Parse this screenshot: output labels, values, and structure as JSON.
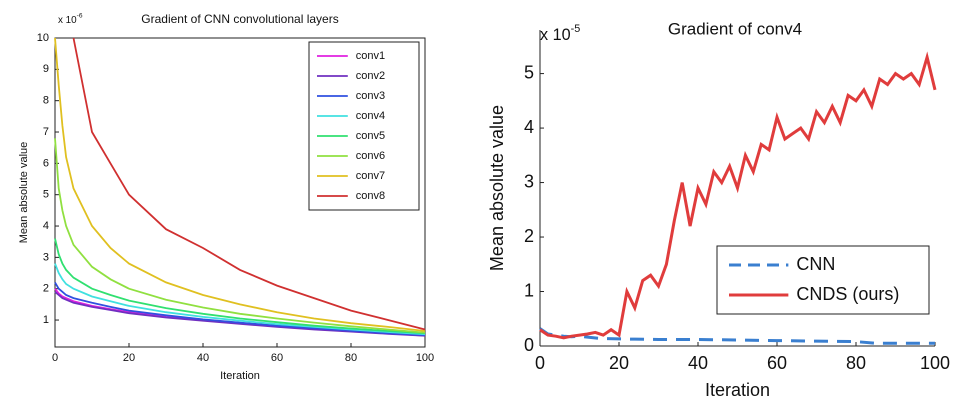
{
  "chart_data": [
    {
      "type": "line",
      "title": "Gradient of CNN convolutional layers",
      "x_label": "Iteration",
      "y_label": "Mean absolute value",
      "y_offset_label": "x 10",
      "y_offset_exponent": "-6",
      "x": [
        0,
        1,
        2,
        3,
        5,
        10,
        15,
        20,
        30,
        40,
        50,
        60,
        70,
        80,
        90,
        100
      ],
      "xlim": [
        0,
        100
      ],
      "xticks": [
        0,
        20,
        40,
        60,
        80,
        100
      ],
      "ylim": [
        0.14,
        10
      ],
      "yticks": [
        1,
        2,
        3,
        4,
        5,
        6,
        7,
        8,
        9,
        10
      ],
      "legend": "upper right",
      "series": [
        {
          "name": "conv1",
          "color": "#e020e0",
          "values": [
            2.0,
            1.85,
            1.75,
            1.7,
            1.6,
            1.45,
            1.35,
            1.25,
            1.1,
            1.0,
            0.9,
            0.8,
            0.72,
            0.65,
            0.58,
            0.5
          ]
        },
        {
          "name": "conv2",
          "color": "#7030c0",
          "values": [
            1.9,
            1.8,
            1.7,
            1.65,
            1.55,
            1.42,
            1.32,
            1.22,
            1.08,
            0.98,
            0.88,
            0.78,
            0.7,
            0.63,
            0.56,
            0.5
          ]
        },
        {
          "name": "conv3",
          "color": "#3050e0",
          "values": [
            2.2,
            2.0,
            1.9,
            1.8,
            1.7,
            1.55,
            1.42,
            1.3,
            1.15,
            1.02,
            0.92,
            0.82,
            0.74,
            0.66,
            0.58,
            0.52
          ]
        },
        {
          "name": "conv4",
          "color": "#40e0e0",
          "values": [
            2.8,
            2.5,
            2.3,
            2.15,
            2.0,
            1.75,
            1.6,
            1.45,
            1.25,
            1.1,
            0.98,
            0.87,
            0.78,
            0.7,
            0.62,
            0.55
          ]
        },
        {
          "name": "conv5",
          "color": "#30e070",
          "values": [
            3.6,
            3.1,
            2.8,
            2.6,
            2.35,
            2.0,
            1.8,
            1.62,
            1.38,
            1.2,
            1.05,
            0.93,
            0.82,
            0.73,
            0.65,
            0.58
          ]
        },
        {
          "name": "conv6",
          "color": "#90e040",
          "values": [
            6.8,
            5.2,
            4.5,
            4.0,
            3.4,
            2.7,
            2.3,
            2.0,
            1.65,
            1.4,
            1.2,
            1.05,
            0.92,
            0.8,
            0.7,
            0.6
          ]
        },
        {
          "name": "conv7",
          "color": "#e0c020",
          "values": [
            10,
            8.5,
            7.2,
            6.2,
            5.2,
            4.0,
            3.3,
            2.8,
            2.2,
            1.8,
            1.5,
            1.25,
            1.05,
            0.9,
            0.78,
            0.65
          ]
        },
        {
          "name": "conv8",
          "color": "#d03030",
          "values": [
            null,
            null,
            null,
            null,
            10,
            7,
            6,
            5,
            3.9,
            3.3,
            2.6,
            2.1,
            1.7,
            1.3,
            1.0,
            0.7
          ]
        }
      ]
    },
    {
      "type": "line",
      "title": "Gradient of conv4",
      "x_label": "Iteration",
      "y_label": "Mean absolute value",
      "y_offset_label": "x 10",
      "y_offset_exponent": "-5",
      "xlim": [
        0,
        100
      ],
      "xticks": [
        0,
        20,
        40,
        60,
        80,
        100
      ],
      "ylim": [
        0,
        5.8
      ],
      "yticks": [
        0,
        1,
        2,
        3,
        4,
        5
      ],
      "legend": "lower right",
      "series": [
        {
          "name": "CNN",
          "color": "#3a7fd0",
          "linestyle": "dashed",
          "x": [
            0,
            2,
            4,
            6,
            8,
            10,
            15,
            20,
            30,
            40,
            50,
            60,
            70,
            80,
            85,
            90,
            100
          ],
          "values": [
            0.32,
            0.22,
            0.2,
            0.18,
            0.17,
            0.18,
            0.14,
            0.13,
            0.12,
            0.12,
            0.11,
            0.1,
            0.09,
            0.08,
            0.05,
            0.05,
            0.05
          ]
        },
        {
          "name": "CNDS (ours)",
          "color": "#e03c3c",
          "linestyle": "solid",
          "x": [
            0,
            2,
            4,
            6,
            8,
            10,
            12,
            14,
            16,
            18,
            20,
            22,
            24,
            26,
            28,
            30,
            32,
            34,
            36,
            38,
            40,
            42,
            44,
            46,
            48,
            50,
            52,
            54,
            56,
            58,
            60,
            62,
            64,
            66,
            68,
            70,
            72,
            74,
            76,
            78,
            80,
            82,
            84,
            86,
            88,
            90,
            92,
            94,
            96,
            98,
            100
          ],
          "values": [
            0.3,
            0.2,
            0.18,
            0.15,
            0.18,
            0.2,
            0.22,
            0.25,
            0.2,
            0.3,
            0.2,
            1.0,
            0.7,
            1.2,
            1.3,
            1.1,
            1.5,
            2.3,
            3.0,
            2.2,
            2.9,
            2.6,
            3.2,
            3.0,
            3.3,
            2.9,
            3.5,
            3.2,
            3.7,
            3.6,
            4.2,
            3.8,
            3.9,
            4.0,
            3.8,
            4.3,
            4.1,
            4.4,
            4.1,
            4.6,
            4.5,
            4.7,
            4.4,
            4.9,
            4.8,
            5.0,
            4.9,
            5.0,
            4.8,
            5.3,
            4.7
          ]
        }
      ]
    }
  ]
}
